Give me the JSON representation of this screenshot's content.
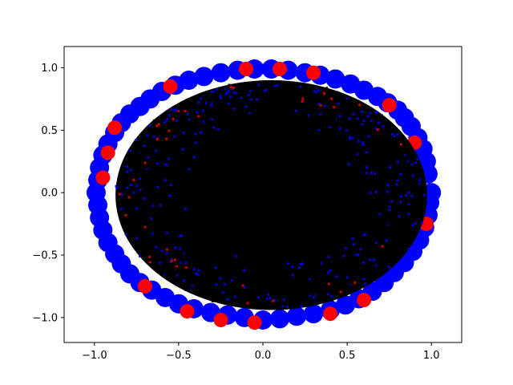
{
  "chart_data": {
    "type": "scatter",
    "title": "",
    "xlabel": "",
    "ylabel": "",
    "xlim": [
      -1.18,
      1.18
    ],
    "ylim": [
      -1.2,
      1.17
    ],
    "xticks": [
      -1.0,
      -0.5,
      0.0,
      0.5,
      1.0
    ],
    "xtick_labels": [
      "−1.0",
      "−0.5",
      "0.0",
      "0.5",
      "1.0"
    ],
    "yticks": [
      -1.0,
      -0.5,
      0.0,
      0.5,
      1.0
    ],
    "ytick_labels": [
      "−1.0",
      "−0.5",
      "0.0",
      "0.5",
      "1.0"
    ],
    "grid": false,
    "legend": "none",
    "series": [
      {
        "color": "#ff0000",
        "marker": "large-circle",
        "points": [
          [
            -0.88,
            0.52
          ],
          [
            -0.92,
            0.32
          ],
          [
            -0.95,
            0.12
          ],
          [
            -0.55,
            0.85
          ],
          [
            -0.45,
            -0.95
          ],
          [
            -0.25,
            -1.02
          ],
          [
            -0.05,
            -1.04
          ],
          [
            0.6,
            -0.86
          ],
          [
            0.75,
            0.7
          ],
          [
            0.1,
            0.99
          ],
          [
            -0.1,
            0.99
          ],
          [
            0.3,
            0.96
          ],
          [
            0.97,
            -0.25
          ],
          [
            -0.7,
            -0.75
          ],
          [
            0.9,
            0.4
          ],
          [
            0.4,
            -0.97
          ]
        ]
      },
      {
        "color": "#0000ff",
        "marker": "large-circle",
        "points": [
          [
            1.0,
            0.0
          ],
          [
            0.98,
            0.15
          ],
          [
            0.97,
            0.25
          ],
          [
            0.95,
            0.35
          ],
          [
            0.92,
            0.44
          ],
          [
            0.88,
            0.53
          ],
          [
            0.84,
            0.6
          ],
          [
            0.8,
            0.66
          ],
          [
            0.74,
            0.72
          ],
          [
            0.68,
            0.77
          ],
          [
            0.6,
            0.82
          ],
          [
            0.52,
            0.87
          ],
          [
            0.43,
            0.91
          ],
          [
            0.34,
            0.94
          ],
          [
            0.25,
            0.96
          ],
          [
            0.15,
            0.98
          ],
          [
            0.05,
            0.99
          ],
          [
            -0.05,
            0.99
          ],
          [
            -0.15,
            0.98
          ],
          [
            -0.25,
            0.96
          ],
          [
            -0.35,
            0.93
          ],
          [
            -0.44,
            0.9
          ],
          [
            -0.52,
            0.86
          ],
          [
            -0.6,
            0.81
          ],
          [
            -0.67,
            0.75
          ],
          [
            -0.73,
            0.69
          ],
          [
            -0.79,
            0.63
          ],
          [
            -0.84,
            0.56
          ],
          [
            -0.88,
            0.48
          ],
          [
            -0.92,
            0.39
          ],
          [
            -0.95,
            0.3
          ],
          [
            -0.97,
            0.2
          ],
          [
            -0.98,
            0.1
          ],
          [
            -0.99,
            0.0
          ],
          [
            -0.98,
            -0.1
          ],
          [
            -0.97,
            -0.2
          ],
          [
            -0.95,
            -0.3
          ],
          [
            -0.92,
            -0.4
          ],
          [
            -0.88,
            -0.49
          ],
          [
            -0.84,
            -0.57
          ],
          [
            -0.79,
            -0.65
          ],
          [
            -0.73,
            -0.72
          ],
          [
            -0.66,
            -0.78
          ],
          [
            -0.58,
            -0.84
          ],
          [
            -0.5,
            -0.89
          ],
          [
            -0.41,
            -0.93
          ],
          [
            -0.31,
            -0.96
          ],
          [
            -0.21,
            -0.98
          ],
          [
            -0.11,
            -1.0
          ],
          [
            0.0,
            -1.02
          ],
          [
            0.1,
            -1.01
          ],
          [
            0.2,
            -0.99
          ],
          [
            0.3,
            -0.97
          ],
          [
            0.4,
            -0.94
          ],
          [
            0.49,
            -0.9
          ],
          [
            0.57,
            -0.85
          ],
          [
            0.65,
            -0.79
          ],
          [
            0.72,
            -0.72
          ],
          [
            0.78,
            -0.64
          ],
          [
            0.84,
            -0.56
          ],
          [
            0.89,
            -0.47
          ],
          [
            0.93,
            -0.38
          ],
          [
            0.96,
            -0.28
          ],
          [
            0.98,
            -0.18
          ],
          [
            0.99,
            -0.08
          ]
        ]
      },
      {
        "color": "#000000",
        "marker": "dense-fill",
        "points": []
      }
    ]
  }
}
